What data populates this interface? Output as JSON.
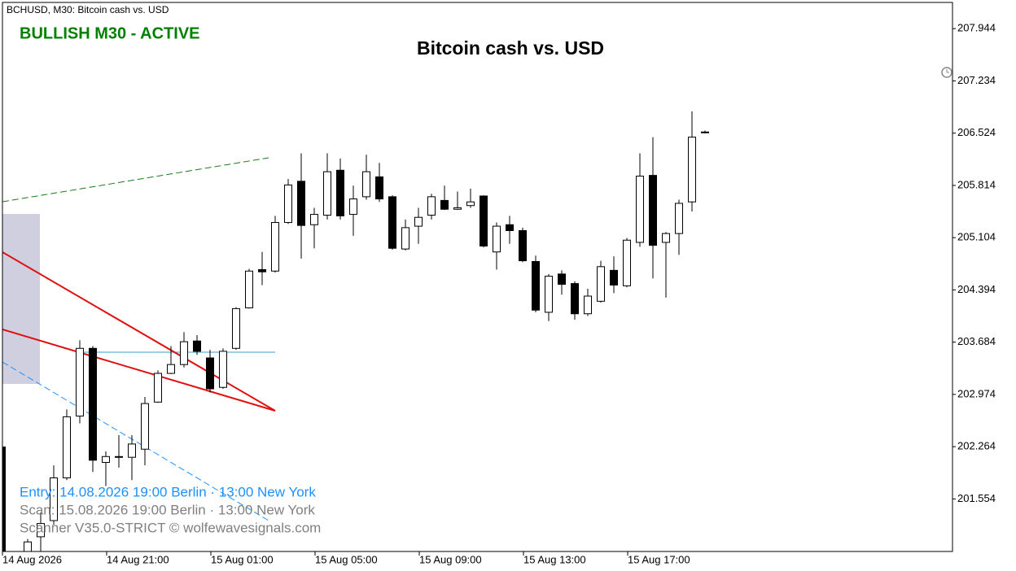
{
  "chart_data": {
    "type": "candlestick",
    "symbol_label": "BCHUSD, M30:  Bitcoin cash vs. USD",
    "status": "BULLISH M30 - ACTIVE",
    "status_color": "#008000",
    "title": "Bitcoin cash vs. USD",
    "annotations": [
      {
        "text": "Entry: 14.08.2026  19:00 Berlin · 13:00 New York",
        "color": "#1e90ff"
      },
      {
        "text": "Scan:  15.08.2026  19:00 Berlin · 13:00 New York",
        "color": "#808080"
      },
      {
        "text": "Scanner V35.0-STRICT   © wolfewavesignals.com",
        "color": "#808080"
      }
    ],
    "categories": [
      "14 Aug 2026",
      null,
      null,
      null,
      null,
      null,
      null,
      null,
      "14 Aug 21:00",
      null,
      null,
      null,
      null,
      null,
      null,
      null,
      "15 Aug 01:00",
      null,
      null,
      null,
      null,
      null,
      null,
      null,
      "15 Aug 05:00",
      null,
      null,
      null,
      null,
      null,
      null,
      null,
      "15 Aug 09:00",
      null,
      null,
      null,
      null,
      null,
      null,
      null,
      "15 Aug 13:00",
      null,
      null,
      null,
      null,
      null,
      null,
      null,
      "15 Aug 17:00",
      null,
      null,
      null,
      null,
      null,
      null
    ],
    "open": [
      202.26,
      null,
      200.84,
      201.04,
      201.26,
      201.84,
      202.68,
      203.6,
      202.05,
      202.13,
      202.12,
      202.23,
      202.87,
      203.26,
      203.38,
      203.7,
      203.47,
      203.07,
      203.6,
      204.15,
      204.67,
      204.65,
      205.31,
      205.87,
      205.28,
      205.41,
      206.02,
      205.42,
      205.66,
      205.93,
      205.66,
      204.95,
      205.26,
      205.41,
      205.61,
      205.49,
      205.54,
      205.67,
      204.91,
      205.28,
      205.2,
      204.78,
      204.09,
      204.61,
      204.48,
      204.07,
      204.24,
      204.66,
      204.45,
      205.04,
      205.95,
      205.04,
      205.16,
      205.59,
      206.54
    ],
    "high": [
      202.26,
      null,
      201.01,
      201.37,
      202.01,
      202.77,
      203.71,
      203.63,
      202.2,
      202.42,
      202.42,
      202.94,
      203.3,
      203.63,
      203.82,
      203.78,
      203.58,
      203.6,
      204.16,
      204.68,
      204.91,
      205.4,
      205.9,
      206.25,
      205.51,
      206.25,
      206.18,
      205.81,
      206.23,
      206.12,
      205.68,
      205.35,
      205.51,
      205.7,
      205.81,
      205.73,
      205.77,
      205.68,
      205.31,
      205.4,
      205.24,
      204.86,
      204.61,
      204.66,
      204.51,
      204.41,
      204.79,
      204.85,
      205.1,
      206.25,
      206.47,
      205.18,
      205.62,
      206.82,
      206.56
    ],
    "low": [
      200.84,
      null,
      200.84,
      200.84,
      201.2,
      201.81,
      202.58,
      201.92,
      201.73,
      201.98,
      201.81,
      202.01,
      202.86,
      203.25,
      203.34,
      203.51,
      203.0,
      203.05,
      203.58,
      204.14,
      204.46,
      204.63,
      205.29,
      204.82,
      204.96,
      205.35,
      205.35,
      205.13,
      205.62,
      205.59,
      204.94,
      204.93,
      205.02,
      205.35,
      205.48,
      205.48,
      205.51,
      204.97,
      204.67,
      205.02,
      204.77,
      204.09,
      203.97,
      204.33,
      203.99,
      204.04,
      204.22,
      204.35,
      204.43,
      204.98,
      204.55,
      204.29,
      204.87,
      205.46,
      206.52
    ],
    "close": [
      200.84,
      null,
      200.97,
      201.22,
      201.84,
      202.67,
      203.6,
      202.08,
      202.13,
      202.13,
      202.3,
      202.85,
      203.26,
      203.38,
      203.69,
      203.56,
      203.05,
      203.56,
      204.14,
      204.65,
      204.64,
      205.31,
      205.82,
      205.27,
      205.42,
      206.0,
      205.4,
      205.63,
      206.0,
      205.63,
      204.96,
      205.24,
      205.38,
      205.66,
      205.49,
      205.51,
      205.59,
      204.99,
      205.26,
      205.2,
      204.79,
      204.12,
      204.58,
      204.47,
      204.07,
      204.31,
      204.71,
      204.46,
      205.07,
      205.94,
      205.0,
      205.16,
      205.57,
      206.47,
      206.54
    ],
    "up_color": "#ffffff",
    "down_color": "#000000",
    "ylim": [
      200.84,
      208.3
    ],
    "yticks": [
      207.944,
      207.234,
      206.524,
      205.814,
      205.104,
      204.394,
      203.684,
      202.974,
      202.264,
      201.554
    ]
  }
}
